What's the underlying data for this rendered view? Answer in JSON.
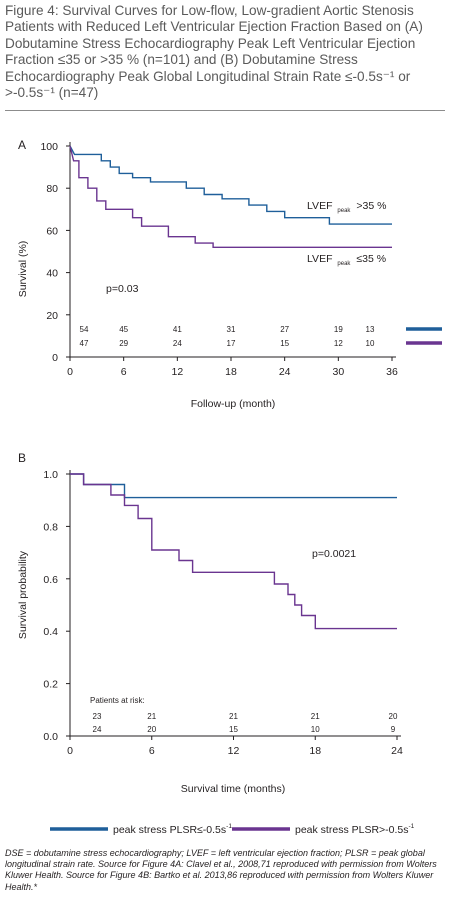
{
  "title": "Figure 4: Survival Curves for Low-flow, Low-gradient Aortic Stenosis Patients with Reduced Left Ventricular Ejection Fraction Based on (A) Dobutamine Stress Echocardiography Peak Left Ventricular Ejection Fraction ≤35 or >35 % (n=101) and (B) Dobutamine Stress Echocardiography Peak Global Longitudinal Strain Rate ≤-0.5s⁻¹ or >-0.5s⁻¹ (n=47)",
  "colors": {
    "blue": "#1f5f9a",
    "purple": "#6a3590",
    "axis": "#231f20"
  },
  "chart_data": [
    {
      "type": "line",
      "step": true,
      "panel_label": "A",
      "xlabel": "Follow-up (month)",
      "ylabel": "Survival (%)",
      "xlim": [
        0,
        36
      ],
      "ylim": [
        0,
        100
      ],
      "xticks": [
        0,
        6,
        12,
        18,
        24,
        30,
        36
      ],
      "yticks": [
        0,
        20,
        40,
        60,
        80,
        100
      ],
      "series": [
        {
          "name": "LVEF peak >35 %",
          "label_main": "LVEF",
          "label_sub": "peak",
          "label_tail": ">35 %",
          "color": "#1f5f9a",
          "points": [
            [
              0,
              100
            ],
            [
              0.5,
              96
            ],
            [
              3.5,
              96
            ],
            [
              3.5,
              93
            ],
            [
              4.5,
              93
            ],
            [
              4.5,
              90
            ],
            [
              5.5,
              90
            ],
            [
              5.5,
              87
            ],
            [
              7,
              87
            ],
            [
              7,
              85
            ],
            [
              9,
              85
            ],
            [
              9,
              83
            ],
            [
              13,
              83
            ],
            [
              13,
              80
            ],
            [
              15,
              80
            ],
            [
              15,
              77
            ],
            [
              17,
              77
            ],
            [
              17,
              75
            ],
            [
              20,
              75
            ],
            [
              20,
              72
            ],
            [
              22,
              72
            ],
            [
              22,
              69
            ],
            [
              24,
              69
            ],
            [
              24,
              66
            ],
            [
              29,
              66
            ],
            [
              29,
              63
            ],
            [
              36,
              63
            ]
          ],
          "at_risk": [
            54,
            45,
            41,
            31,
            27,
            19,
            13
          ]
        },
        {
          "name": "LVEF peak ≤35 %",
          "label_main": "LVEF",
          "label_sub": "peak",
          "label_tail": "≤35 %",
          "color": "#6a3590",
          "points": [
            [
              0,
              100
            ],
            [
              0.4,
              93
            ],
            [
              1,
              93
            ],
            [
              1,
              85
            ],
            [
              2,
              85
            ],
            [
              2,
              80
            ],
            [
              3,
              80
            ],
            [
              3,
              74
            ],
            [
              4,
              74
            ],
            [
              4,
              70
            ],
            [
              7,
              70
            ],
            [
              7,
              66
            ],
            [
              8,
              66
            ],
            [
              8,
              62
            ],
            [
              11,
              62
            ],
            [
              11,
              57
            ],
            [
              14,
              57
            ],
            [
              14,
              54
            ],
            [
              16,
              54
            ],
            [
              16,
              52
            ],
            [
              36,
              52
            ]
          ],
          "at_risk": [
            47,
            29,
            24,
            17,
            15,
            12,
            10
          ]
        }
      ],
      "annotations": [
        "p=0.03"
      ]
    },
    {
      "type": "line",
      "step": true,
      "panel_label": "B",
      "xlabel": "Survival time (months)",
      "ylabel": "Survival probability",
      "xlim": [
        0,
        24
      ],
      "ylim": [
        0.0,
        1.0
      ],
      "xticks": [
        0,
        6,
        12,
        18,
        24
      ],
      "yticks": [
        "0.0",
        "0.2",
        "0.4",
        "0.6",
        "0.8",
        "1.0"
      ],
      "at_risk_title": "Patients at risk:",
      "at_risk_x": [
        0,
        6,
        12,
        18,
        24
      ],
      "series": [
        {
          "name": "peak stress PLSR≤-0.5s-1",
          "color": "#1f5f9a",
          "points": [
            [
              0,
              1.0
            ],
            [
              1,
              1.0
            ],
            [
              1,
              0.96
            ],
            [
              4,
              0.96
            ],
            [
              4,
              0.91
            ],
            [
              24,
              0.91
            ]
          ],
          "at_risk": [
            23,
            21,
            21,
            21,
            20
          ]
        },
        {
          "name": "peak stress PLSR>-0.5s-1",
          "color": "#6a3590",
          "points": [
            [
              0,
              1.0
            ],
            [
              1,
              1.0
            ],
            [
              1,
              0.96
            ],
            [
              3,
              0.96
            ],
            [
              3,
              0.92
            ],
            [
              4,
              0.92
            ],
            [
              4,
              0.88
            ],
            [
              5,
              0.88
            ],
            [
              5,
              0.83
            ],
            [
              6,
              0.83
            ],
            [
              6,
              0.71
            ],
            [
              8,
              0.71
            ],
            [
              8,
              0.67
            ],
            [
              9,
              0.67
            ],
            [
              9,
              0.625
            ],
            [
              15,
              0.625
            ],
            [
              15,
              0.58
            ],
            [
              16,
              0.58
            ],
            [
              16,
              0.54
            ],
            [
              16.5,
              0.54
            ],
            [
              16.5,
              0.5
            ],
            [
              17,
              0.5
            ],
            [
              17,
              0.46
            ],
            [
              18,
              0.46
            ],
            [
              18,
              0.41
            ],
            [
              24,
              0.41
            ]
          ],
          "at_risk": [
            24,
            20,
            15,
            10,
            9
          ]
        }
      ],
      "annotations": [
        "p=0.0021"
      ]
    }
  ],
  "legend_b": [
    {
      "text": "peak stress PLSR≤-0.5s",
      "sup": "-1",
      "color": "#1f5f9a"
    },
    {
      "text": "peak stress PLSR>-0.5s",
      "sup": "-1",
      "color": "#6a3590"
    }
  ],
  "footnote": "DSE = dobutamine stress echocardiography; LVEF = left ventricular ejection fraction; PLSR = peak global longitudinal strain rate. Source for Figure 4A: Clavel et al., 2008,71 reproduced with permission from Wolters Kluwer Health. Source for Figure 4B: Bartko et al. 2013,86 reproduced with permission from Wolters Kluwer Health.*"
}
